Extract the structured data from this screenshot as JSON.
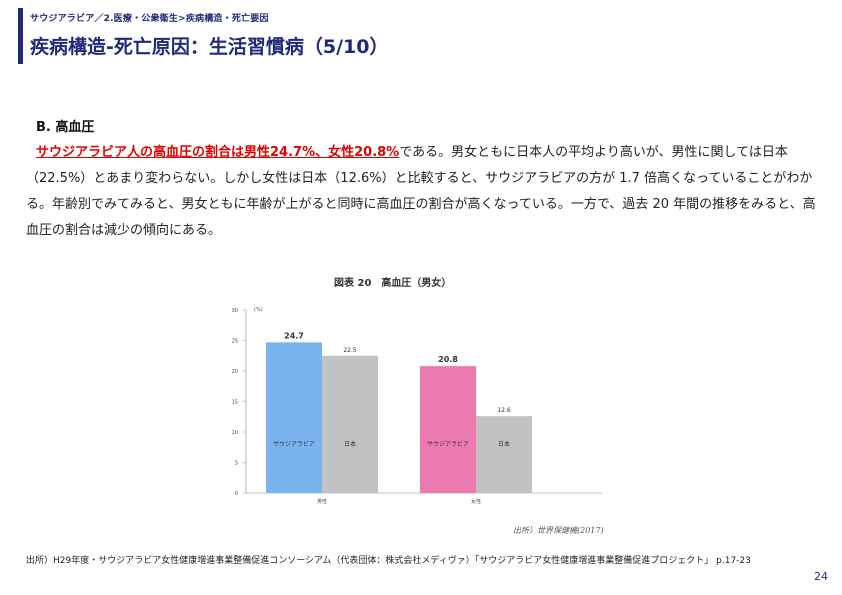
{
  "header": {
    "breadcrumb": "サウジアラビア／2.医療・公衆衛生>疾病構造・死亡要因",
    "title": "疾病構造-死亡原因：生活習慣病（5/10）"
  },
  "section": {
    "heading": "B. 高血圧",
    "highlight": "サウジアラビア人の高血圧の割合は男性24.7%、女性20.8%",
    "body": "である。男女ともに日本人の平均より高いが、男性に関しては日本（22.5%）とあまり変わらない。しかし女性は日本（12.6%）と比較すると、サウジアラビアの方が 1.7 倍高くなっていることがわかる。年齢別でみてみると、男女ともに年齢が上がると同時に高血圧の割合が高くなっている。一方で、過去 20 年間の推移をみると、高血圧の割合は減少の傾向にある。"
  },
  "chart_data": {
    "type": "bar",
    "title": "図表 20　高血圧（男女）",
    "unit": "(%)",
    "categories": [
      "男性",
      "女性"
    ],
    "series": [
      {
        "name": "サウジアラビア",
        "values": [
          24.7,
          20.8
        ],
        "colors": [
          "#7ab4f0",
          "#ec7ab0"
        ]
      },
      {
        "name": "日本",
        "values": [
          22.5,
          12.6
        ],
        "colors": [
          "#c2c2c2",
          "#c2c2c2"
        ]
      }
    ],
    "value_labels": [
      [
        "24.7",
        "22.5"
      ],
      [
        "20.8",
        "12.6"
      ]
    ],
    "yticks": [
      "30",
      "25",
      "20",
      "15",
      "10",
      "5",
      "0"
    ],
    "ylim": [
      0,
      30
    ],
    "grid": false,
    "source": "出所）世界保健機(2017)"
  },
  "footer": {
    "note": "出所）H29年度・サウジアラビア女性健康増進事業整備促進コンソーシアム（代表団体：株式会社メディヴァ）「サウジアラビア女性健康増進事業整備促進プロジェクト」 p.17-23",
    "page_number": "24"
  }
}
